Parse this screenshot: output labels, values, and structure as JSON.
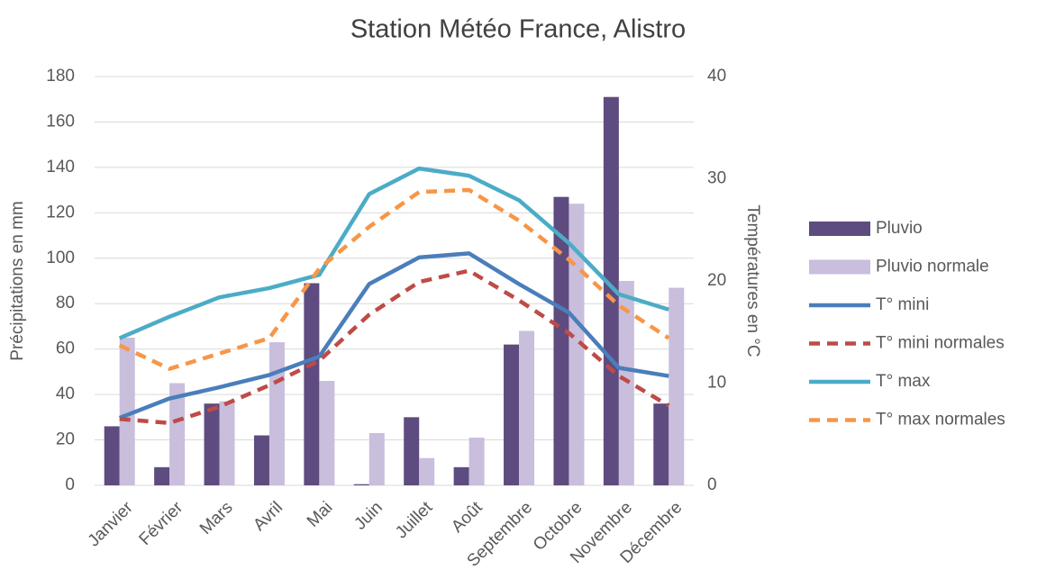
{
  "chart_data": {
    "type": "combo",
    "title": "Station Météo France, Alistro",
    "ylabel": "Précipitations en mm",
    "y2label": "Températures en °C",
    "categories": [
      "Janvier",
      "Février",
      "Mars",
      "Avril",
      "Mai",
      "Juin",
      "Juillet",
      "Août",
      "Septembre",
      "Octobre",
      "Novembre",
      "Décembre"
    ],
    "ylim": [
      0,
      180
    ],
    "yticks": [
      0,
      20,
      40,
      60,
      80,
      100,
      120,
      140,
      160,
      180
    ],
    "y2lim": [
      0,
      40
    ],
    "y2ticks": [
      0,
      10,
      20,
      30,
      40
    ],
    "grid": true,
    "legend": "right",
    "series": [
      {
        "name": "Pluvio",
        "type": "bar",
        "color": "#5e4b7f",
        "values": [
          26,
          8,
          36,
          22,
          89,
          0.5,
          30,
          8,
          62,
          127,
          171,
          36
        ]
      },
      {
        "name": "Pluvio normale",
        "type": "bar",
        "color": "#c9bedc",
        "values": [
          65,
          45,
          37,
          63,
          46,
          23,
          12,
          21,
          68,
          124,
          90,
          87
        ]
      },
      {
        "name": "T° mini",
        "type": "line",
        "axis": "y2",
        "color": "#4a7ebb",
        "dashed": false,
        "values": [
          6.6,
          8.5,
          9.6,
          10.8,
          12.6,
          19.7,
          22.3,
          22.7,
          19.7,
          16.9,
          11.5,
          10.7
        ]
      },
      {
        "name": "T° mini normales",
        "type": "line",
        "axis": "y2",
        "color": "#be4b48",
        "dashed": true,
        "values": [
          6.5,
          6.1,
          7.7,
          9.8,
          12.2,
          16.7,
          19.9,
          21.0,
          18.1,
          14.9,
          10.7,
          7.8
        ]
      },
      {
        "name": "T° max",
        "type": "line",
        "axis": "y2",
        "color": "#4bacc6",
        "dashed": false,
        "values": [
          14.4,
          16.5,
          18.4,
          19.3,
          20.6,
          28.5,
          31.0,
          30.3,
          27.9,
          23.7,
          18.7,
          17.2
        ]
      },
      {
        "name": "T° max normales",
        "type": "line",
        "axis": "y2",
        "color": "#f79646",
        "dashed": true,
        "values": [
          13.7,
          11.4,
          12.9,
          14.4,
          21.2,
          25.3,
          28.7,
          28.9,
          25.9,
          22.1,
          17.6,
          14.4
        ]
      }
    ]
  }
}
